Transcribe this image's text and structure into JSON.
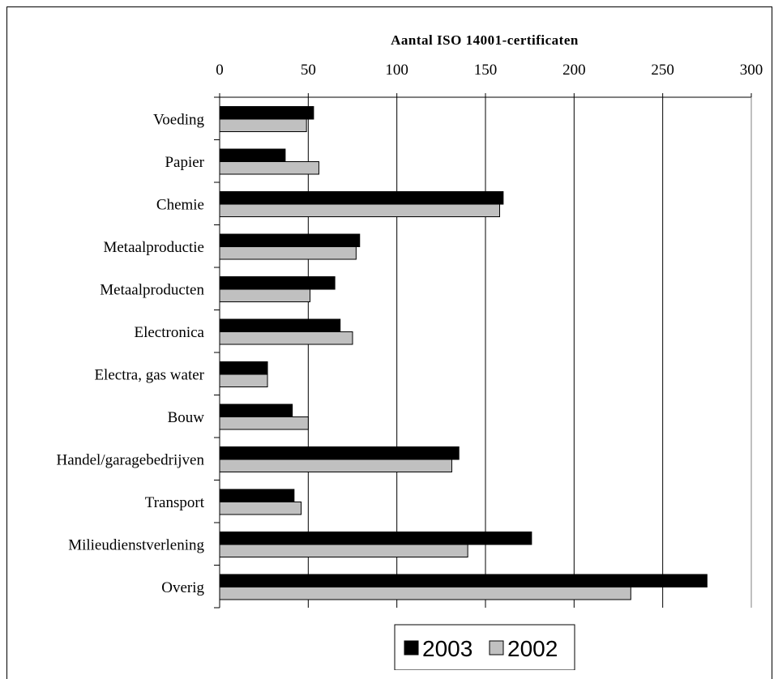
{
  "chart_data": {
    "type": "bar",
    "orientation": "horizontal",
    "title": "Aantal ISO 14001-certificaten",
    "categories": [
      "Voeding",
      "Papier",
      "Chemie",
      "Metaalproductie",
      "Metaalproducten",
      "Electronica",
      "Electra, gas water",
      "Bouw",
      "Handel/garagebedrijven",
      "Transport",
      "Milieudienstverlening",
      "Overig"
    ],
    "series": [
      {
        "name": "2003",
        "color": "#000000",
        "values": [
          53,
          37,
          160,
          79,
          65,
          68,
          27,
          41,
          135,
          42,
          176,
          275
        ]
      },
      {
        "name": "2002",
        "color": "#c0c0c0",
        "values": [
          49,
          56,
          158,
          77,
          51,
          75,
          27,
          50,
          131,
          46,
          140,
          232
        ]
      }
    ],
    "xlim": [
      0,
      300
    ],
    "ticks": [
      "0",
      "50",
      "100",
      "150",
      "200",
      "250",
      "300"
    ],
    "axis_position": "top",
    "grid": true,
    "legend_position": "bottom"
  }
}
